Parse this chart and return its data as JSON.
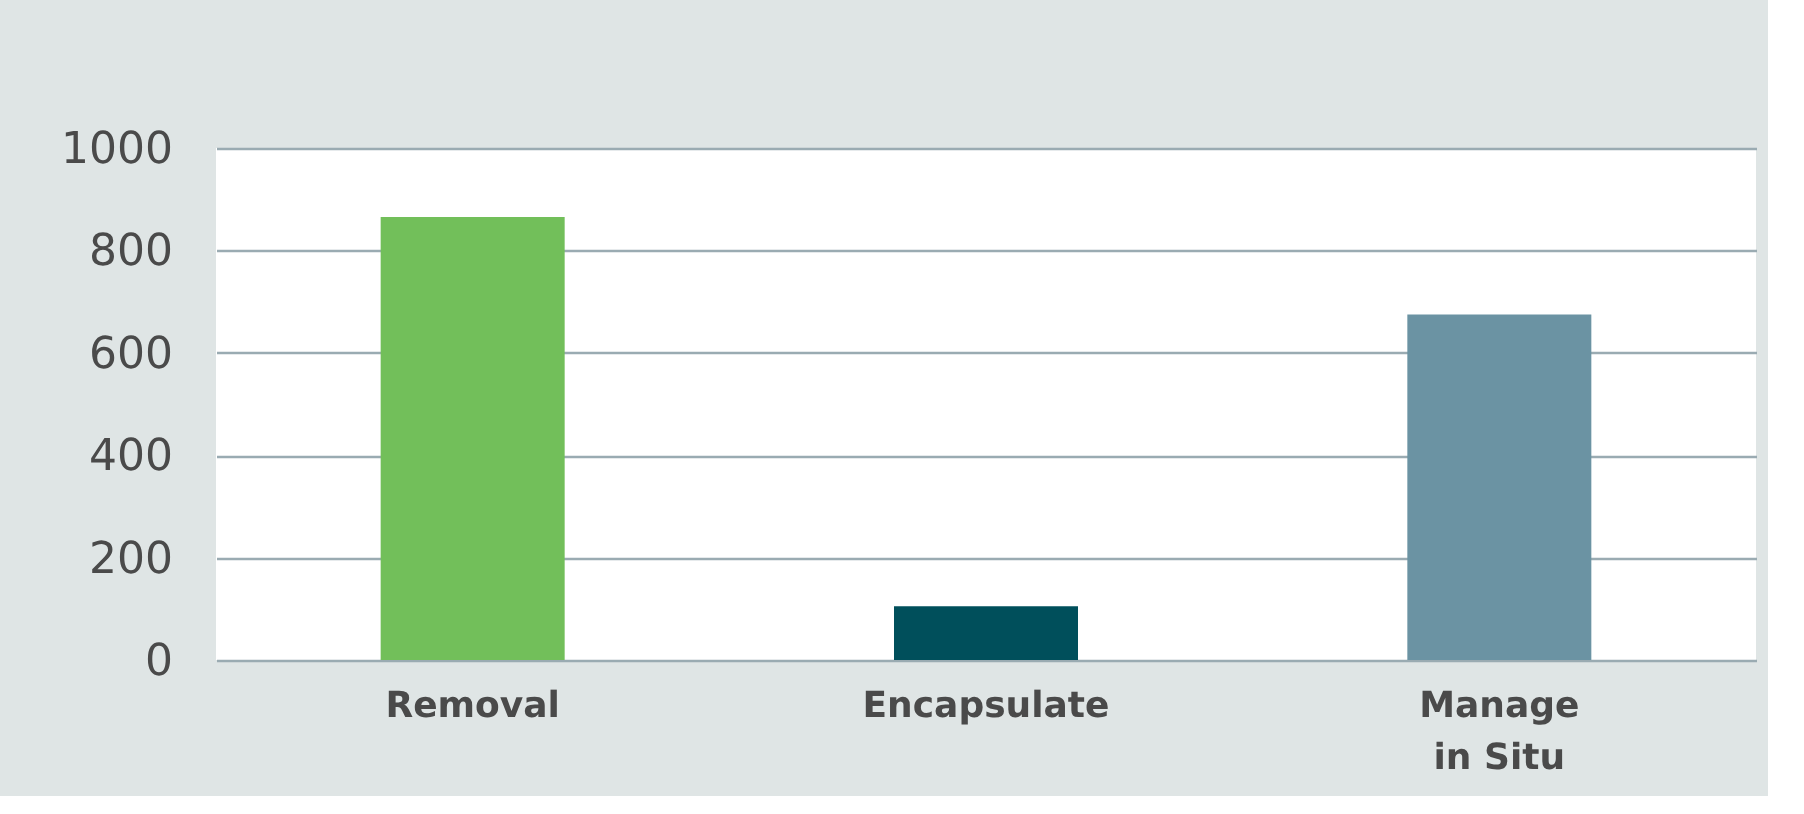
{
  "chart_data": {
    "type": "bar",
    "categories": [
      "Removal",
      "Encapsulate",
      "Manage in Situ"
    ],
    "values": [
      865,
      105,
      675
    ],
    "colors": [
      "#72bf5a",
      "#004f5b",
      "#6b93a3"
    ],
    "ylim": [
      0,
      1000
    ],
    "yticks": [
      0,
      200,
      400,
      600,
      800,
      1000
    ],
    "grid": "y"
  }
}
